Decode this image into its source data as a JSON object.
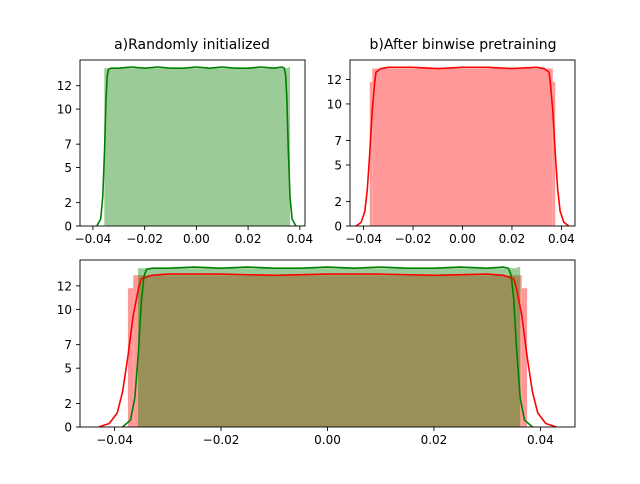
{
  "chart_data": [
    {
      "type": "histogram",
      "title": "a)Randomly initialized",
      "xlabel": "",
      "ylabel": "",
      "xlim": [
        -0.045,
        0.042
      ],
      "ylim": [
        0,
        14.2
      ],
      "x_ticks": [
        -0.04,
        -0.02,
        0.0,
        0.02,
        0.04
      ],
      "x_tick_labels": [
        "−0.04",
        "−0.02",
        "0.00",
        "0.02",
        "0.04"
      ],
      "y_ticks": [
        0,
        2,
        5,
        7,
        10,
        12
      ],
      "y_tick_labels": [
        "0",
        "2",
        "5",
        "7",
        "10",
        "12"
      ],
      "grid": false,
      "series": [
        {
          "color": "#008000",
          "bar_color": "#9bcc97",
          "bins": [
            {
              "x0": -0.0356,
              "x1": 0.0356,
              "count": 13.5
            },
            {
              "x0": 0.0356,
              "x1": 0.0362,
              "count": 13.6
            }
          ],
          "kde": {
            "x": [
              -0.0385,
              -0.037,
              -0.0362,
              -0.0355,
              -0.035,
              -0.0345,
              -0.034,
              -0.033,
              -0.03,
              -0.025,
              -0.02,
              -0.015,
              -0.01,
              -0.005,
              0.0,
              0.005,
              0.01,
              0.015,
              0.02,
              0.025,
              0.03,
              0.033,
              0.034,
              0.0345,
              0.035,
              0.0355,
              0.0362,
              0.037,
              0.0385
            ],
            "y": [
              0.0,
              0.6,
              2.5,
              6.5,
              10.5,
              12.8,
              13.4,
              13.5,
              13.5,
              13.6,
              13.5,
              13.6,
              13.5,
              13.5,
              13.6,
              13.5,
              13.6,
              13.5,
              13.5,
              13.6,
              13.5,
              13.6,
              13.5,
              12.9,
              10.8,
              6.8,
              2.5,
              0.6,
              0.0
            ]
          }
        }
      ]
    },
    {
      "type": "histogram",
      "title": "b)After binwise pretraining",
      "xlabel": "",
      "ylabel": "",
      "xlim": [
        -0.0455,
        0.0455
      ],
      "ylim": [
        0,
        13.6
      ],
      "x_ticks": [
        -0.04,
        -0.02,
        0.0,
        0.02,
        0.04
      ],
      "x_tick_labels": [
        "−0.04",
        "−0.02",
        "0.00",
        "0.02",
        "0.04"
      ],
      "y_ticks": [
        0,
        2,
        5,
        7,
        10,
        12
      ],
      "y_tick_labels": [
        "0",
        "2",
        "5",
        "7",
        "10",
        "12"
      ],
      "grid": false,
      "series": [
        {
          "color": "#ff0000",
          "bar_color": "#ff9999",
          "bins": [
            {
              "x0": -0.0375,
              "x1": -0.0365,
              "count": 11.8
            },
            {
              "x0": -0.0365,
              "x1": 0.0365,
              "count": 12.9
            },
            {
              "x0": 0.0365,
              "x1": 0.0375,
              "count": 11.8
            }
          ],
          "kde": {
            "x": [
              -0.043,
              -0.041,
              -0.0395,
              -0.0385,
              -0.0375,
              -0.0365,
              -0.0355,
              -0.035,
              -0.033,
              -0.03,
              -0.02,
              -0.01,
              0.0,
              0.01,
              0.02,
              0.03,
              0.033,
              0.035,
              0.0355,
              0.0365,
              0.0375,
              0.0385,
              0.0395,
              0.041,
              0.043
            ],
            "y": [
              0.0,
              0.3,
              1.2,
              3.0,
              6.0,
              9.5,
              11.8,
              12.6,
              12.9,
              13.0,
              13.0,
              12.9,
              13.0,
              13.0,
              12.9,
              13.0,
              12.9,
              12.6,
              11.8,
              9.5,
              6.0,
              3.0,
              1.2,
              0.3,
              0.0
            ]
          }
        }
      ]
    },
    {
      "type": "histogram",
      "title": "",
      "xlabel": "",
      "ylabel": "",
      "xlim": [
        -0.0465,
        0.0465
      ],
      "ylim": [
        0,
        14.2
      ],
      "x_ticks": [
        -0.04,
        -0.02,
        0.0,
        0.02,
        0.04
      ],
      "x_tick_labels": [
        "−0.04",
        "−0.02",
        "0.00",
        "0.02",
        "0.04"
      ],
      "y_ticks": [
        0,
        2,
        5,
        7,
        10,
        12
      ],
      "y_tick_labels": [
        "0",
        "2",
        "5",
        "7",
        "10",
        "12"
      ],
      "grid": false,
      "overlap_color": "#9b9158",
      "series": [
        {
          "color": "#ff0000",
          "bar_color": "#ff9999",
          "bins": [
            {
              "x0": -0.0375,
              "x1": -0.0365,
              "count": 11.8
            },
            {
              "x0": -0.0365,
              "x1": 0.0365,
              "count": 12.9
            },
            {
              "x0": 0.0365,
              "x1": 0.0375,
              "count": 11.8
            }
          ],
          "kde": {
            "x": [
              -0.043,
              -0.041,
              -0.0395,
              -0.0385,
              -0.0375,
              -0.0365,
              -0.0355,
              -0.035,
              -0.033,
              -0.03,
              -0.02,
              -0.01,
              0.0,
              0.01,
              0.02,
              0.03,
              0.033,
              0.035,
              0.0355,
              0.0365,
              0.0375,
              0.0385,
              0.0395,
              0.041,
              0.043
            ],
            "y": [
              0.0,
              0.3,
              1.2,
              3.0,
              6.0,
              9.5,
              11.8,
              12.6,
              12.9,
              13.0,
              13.0,
              12.9,
              13.0,
              13.0,
              12.9,
              13.0,
              12.9,
              12.6,
              11.8,
              9.5,
              6.0,
              3.0,
              1.2,
              0.3,
              0.0
            ]
          }
        },
        {
          "color": "#008000",
          "bar_color": "#9bcc97",
          "bins": [
            {
              "x0": -0.0356,
              "x1": 0.0356,
              "count": 13.5
            },
            {
              "x0": 0.0356,
              "x1": 0.0362,
              "count": 13.6
            }
          ],
          "kde": {
            "x": [
              -0.0385,
              -0.037,
              -0.0362,
              -0.0355,
              -0.035,
              -0.0345,
              -0.034,
              -0.033,
              -0.03,
              -0.025,
              -0.02,
              -0.015,
              -0.01,
              -0.005,
              0.0,
              0.005,
              0.01,
              0.015,
              0.02,
              0.025,
              0.03,
              0.033,
              0.034,
              0.0345,
              0.035,
              0.0355,
              0.0362,
              0.037,
              0.0385
            ],
            "y": [
              0.0,
              0.6,
              2.5,
              6.5,
              10.5,
              12.8,
              13.4,
              13.5,
              13.5,
              13.6,
              13.5,
              13.6,
              13.5,
              13.5,
              13.6,
              13.5,
              13.6,
              13.5,
              13.5,
              13.6,
              13.5,
              13.6,
              13.5,
              12.9,
              10.8,
              6.8,
              2.5,
              0.6,
              0.0
            ]
          }
        }
      ]
    }
  ]
}
